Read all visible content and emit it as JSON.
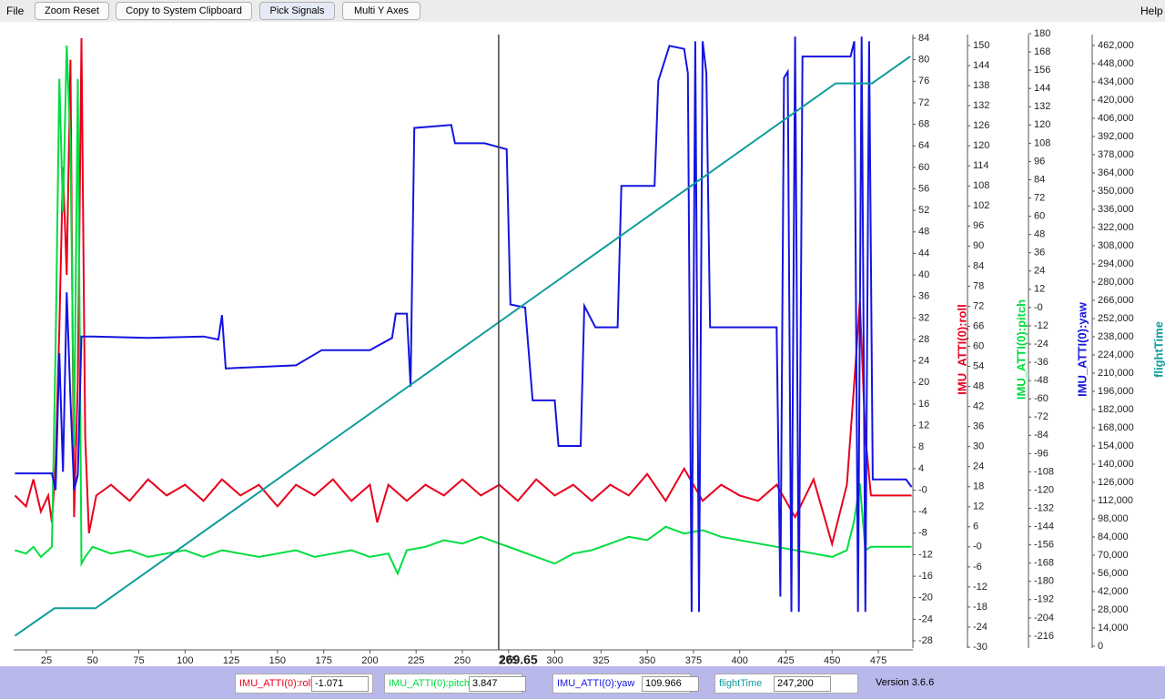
{
  "menu": {
    "file": "File",
    "help": "Help"
  },
  "toolbar": [
    "Zoom Reset",
    "Copy to System Clipboard",
    "Pick Signals",
    "Multi Y Axes"
  ],
  "chart_data": {
    "type": "line",
    "xlim": [
      7.3,
      493.7
    ],
    "xticks": [
      25,
      50,
      75,
      100,
      125,
      150,
      175,
      200,
      225,
      250,
      275,
      300,
      325,
      350,
      375,
      400,
      425,
      450,
      475
    ],
    "cursor": 269.65,
    "series": [
      {
        "name": "IMU_ATTI(0):roll",
        "color": "#e8001c",
        "ylim": [
          -29.35,
          84.68
        ],
        "yticks": [
          84,
          80,
          76,
          72,
          68,
          64,
          60,
          56,
          52,
          48,
          44,
          40,
          36,
          32,
          28,
          24,
          20,
          16,
          12,
          8,
          4,
          {
            "value": 0,
            "label": "-0"
          },
          -4,
          -8,
          -12,
          -16,
          -20,
          -24,
          -28
        ],
        "x": [
          8,
          14,
          18,
          22,
          26,
          28,
          30,
          32,
          34,
          36,
          38,
          40,
          42,
          44,
          46,
          48,
          52,
          60,
          70,
          80,
          90,
          100,
          110,
          120,
          130,
          140,
          150,
          160,
          170,
          180,
          190,
          200,
          204,
          210,
          220,
          230,
          240,
          250,
          260,
          270,
          280,
          290,
          300,
          310,
          320,
          330,
          340,
          350,
          360,
          370,
          380,
          390,
          400,
          410,
          420,
          430,
          440,
          450,
          458,
          462,
          465,
          468,
          471,
          480,
          493
        ],
        "values": [
          -1,
          -3,
          2,
          -4,
          -1,
          -6,
          5,
          30,
          60,
          40,
          80,
          -5,
          20,
          84,
          10,
          -8,
          -1,
          1,
          -2,
          2,
          -1,
          1,
          -2,
          2,
          -1,
          1,
          -3,
          1,
          -1,
          2,
          -2,
          1,
          -6,
          1,
          -2,
          1,
          -1,
          2,
          -1,
          1,
          -2,
          2,
          -1,
          1,
          -2,
          1,
          -1,
          3,
          -2,
          4,
          -2,
          1,
          -1,
          -2,
          1,
          -5,
          2,
          -10,
          1,
          20,
          35,
          10,
          -1,
          -1,
          -1
        ]
      },
      {
        "name": "IMU_ATTI(0):pitch",
        "color": "#00dd40",
        "ylim": [
          -30.27,
          153.27
        ],
        "yticks": [
          150,
          144,
          138,
          132,
          126,
          120,
          114,
          108,
          102,
          96,
          90,
          84,
          78,
          72,
          66,
          60,
          54,
          48,
          42,
          36,
          30,
          24,
          18,
          12,
          6,
          {
            "value": 0,
            "label": "-0"
          },
          -6,
          -12,
          -18,
          -24,
          -30
        ],
        "x": [
          8,
          14,
          18,
          22,
          26,
          28,
          30,
          32,
          34,
          36,
          38,
          40,
          42,
          44,
          46,
          50,
          60,
          70,
          80,
          90,
          100,
          110,
          120,
          130,
          140,
          150,
          160,
          170,
          180,
          190,
          200,
          210,
          215,
          220,
          230,
          240,
          250,
          260,
          270,
          280,
          290,
          300,
          310,
          320,
          330,
          340,
          350,
          360,
          370,
          380,
          390,
          400,
          410,
          420,
          430,
          440,
          450,
          458,
          462,
          465,
          468,
          471,
          480,
          493
        ],
        "values": [
          -1,
          -2,
          0,
          -3,
          -1,
          0,
          60,
          140,
          100,
          150,
          120,
          30,
          140,
          -5,
          -3,
          0,
          -2,
          -1,
          -3,
          -2,
          -1,
          -3,
          -1,
          -2,
          -3,
          -2,
          -1,
          -3,
          -2,
          -1,
          -3,
          -2,
          -8,
          -1,
          0,
          2,
          1,
          3,
          1,
          -1,
          -3,
          -5,
          -2,
          -1,
          1,
          3,
          2,
          6,
          4,
          5,
          3,
          2,
          1,
          0,
          -1,
          -2,
          -3,
          -1,
          8,
          19,
          -1,
          0,
          0,
          0
        ]
      },
      {
        "name": "IMU_ATTI(0):yaw",
        "color": "#1414e0",
        "ylim": [
          -223.8,
          179.4
        ],
        "yticks": [
          180,
          168,
          156,
          144,
          132,
          120,
          108,
          96,
          84,
          72,
          60,
          48,
          36,
          24,
          12,
          {
            "value": 0,
            "label": "-0"
          },
          -12,
          -24,
          -36,
          -48,
          -60,
          -72,
          -84,
          -96,
          -108,
          -120,
          -132,
          -144,
          -156,
          -168,
          -180,
          -192,
          -204,
          -216
        ],
        "x": [
          8,
          28,
          30,
          32,
          34,
          36,
          38,
          40,
          42,
          44,
          50,
          80,
          110,
          118,
          120,
          122,
          160,
          174,
          200,
          212,
          214,
          220,
          222,
          224,
          244,
          246,
          262,
          274,
          276,
          284,
          288,
          300,
          302,
          314,
          316,
          322,
          334,
          336,
          354,
          356,
          362,
          370,
          372,
          374,
          376,
          378,
          380,
          382,
          384,
          420,
          422,
          424,
          426,
          428,
          430,
          432,
          434,
          460,
          462,
          464,
          466,
          468,
          470,
          472,
          490,
          493
        ],
        "values": [
          -109,
          -109,
          -120,
          -30,
          -108,
          10,
          -60,
          -120,
          -110,
          -19,
          -19,
          -20,
          -19,
          -21,
          -5,
          -40,
          -38,
          -28,
          -28,
          -20,
          -4,
          -4,
          -52,
          118,
          120,
          108,
          108,
          104,
          2,
          0,
          -61,
          -61,
          -91,
          -91,
          1,
          -13,
          -13,
          80,
          80,
          149,
          172,
          170,
          154,
          -200,
          175,
          -200,
          175,
          154,
          -13,
          -13,
          -190,
          151,
          155,
          -200,
          178,
          -200,
          165,
          165,
          175,
          -200,
          178,
          -200,
          175,
          -113,
          -113,
          -118
        ]
      },
      {
        "name": "flightTime",
        "color": "#109c9c",
        "ylim": [
          -1392,
          470350
        ],
        "yticks": [
          0,
          {
            "value": 14000,
            "label": "14,000"
          },
          {
            "value": 28000,
            "label": "28,000"
          },
          {
            "value": 42000,
            "label": "42,000"
          },
          {
            "value": 56000,
            "label": "56,000"
          },
          {
            "value": 70000,
            "label": "70,000"
          },
          {
            "value": 84000,
            "label": "84,000"
          },
          {
            "value": 98000,
            "label": "98,000"
          },
          {
            "value": 112000,
            "label": "112,000"
          },
          {
            "value": 126000,
            "label": "126,000"
          },
          {
            "value": 140000,
            "label": "140,000"
          },
          {
            "value": 154000,
            "label": "154,000"
          },
          {
            "value": 168000,
            "label": "168,000"
          },
          {
            "value": 182000,
            "label": "182,000"
          },
          {
            "value": 196000,
            "label": "196,000"
          },
          {
            "value": 210000,
            "label": "210,000"
          },
          {
            "value": 224000,
            "label": "224,000"
          },
          {
            "value": 238000,
            "label": "238,000"
          },
          {
            "value": 252000,
            "label": "252,000"
          },
          {
            "value": 266000,
            "label": "266,000"
          },
          {
            "value": 280000,
            "label": "280,000"
          },
          {
            "value": 294000,
            "label": "294,000"
          },
          {
            "value": 308000,
            "label": "308,000"
          },
          {
            "value": 322000,
            "label": "322,000"
          },
          {
            "value": 336000,
            "label": "336,000"
          },
          {
            "value": 350000,
            "label": "350,000"
          },
          {
            "value": 364000,
            "label": "364,000"
          },
          {
            "value": 378000,
            "label": "378,000"
          },
          {
            "value": 392000,
            "label": "392,000"
          },
          {
            "value": 406000,
            "label": "406,000"
          },
          {
            "value": 420000,
            "label": "420,000"
          },
          {
            "value": 434000,
            "label": "434,000"
          },
          {
            "value": 448000,
            "label": "448,000"
          },
          {
            "value": 462000,
            "label": "462,000"
          }
        ],
        "x": [
          8,
          29.4,
          51.6,
          451.9,
          471.6,
          492.3
        ],
        "values": [
          8000,
          29200,
          29200,
          432800,
          432800,
          453600
        ]
      }
    ]
  },
  "status": {
    "readouts": [
      -1.071,
      3.847,
      109.966,
      {
        "value": 247200,
        "label": "247,200"
      }
    ],
    "version": "Version 3.6.6"
  }
}
